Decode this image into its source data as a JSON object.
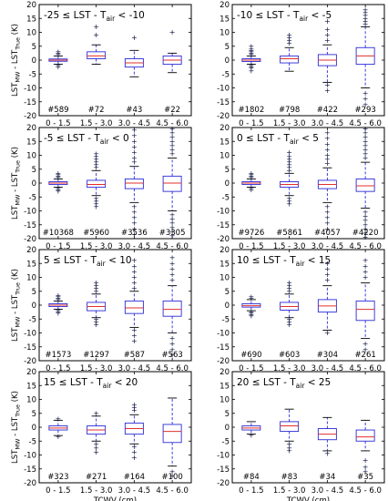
{
  "figure": {
    "ylabel_main": "LST",
    "ylabel_main_sub": "MW",
    "ylabel_dash": " - LST",
    "ylabel_sub2": "True",
    "ylabel_unit": " (K)",
    "xlabel": "TCWV (cm)"
  },
  "chart_data": [
    {
      "type": "box",
      "title": "-25 ≤ LST - T",
      "title_sub": "air",
      "title_end": " < -10",
      "categories": [
        "0 - 1.5",
        "1.5 - 3.0",
        "3.0 - 4.5",
        "4.5 - 6.0"
      ],
      "counts": [
        "#589",
        "#72",
        "#43",
        "#22"
      ],
      "ylim": [
        -20,
        20
      ],
      "yticks": [
        -20,
        -15,
        -10,
        -5,
        0,
        5,
        10,
        15,
        20
      ],
      "boxes": [
        {
          "wlo": -1.5,
          "q1": -0.4,
          "med": 0.0,
          "q3": 0.4,
          "whi": 1.5,
          "fliers": [
            2.0,
            2.5,
            3.0,
            -2.0,
            -2.5
          ]
        },
        {
          "wlo": -1.5,
          "q1": 0.5,
          "med": 1.5,
          "q3": 3.0,
          "whi": 5.5,
          "fliers": [
            9.0,
            12.0
          ]
        },
        {
          "wlo": -6.0,
          "q1": -2.5,
          "med": -1.0,
          "q3": 0.5,
          "whi": 3.5,
          "fliers": [
            8.0
          ]
        },
        {
          "wlo": -4.5,
          "q1": -1.5,
          "med": 0.0,
          "q3": 1.5,
          "whi": 2.5,
          "fliers": [
            10.0
          ]
        }
      ]
    },
    {
      "type": "box",
      "title": "-10 ≤ LST - T",
      "title_sub": "air",
      "title_end": " < -5",
      "categories": [
        "0 - 1.5",
        "1.5 - 3.0",
        "3.0 - 4.5",
        "4.5 - 6.0"
      ],
      "counts": [
        "#1802",
        "#798",
        "#422",
        "#293"
      ],
      "ylim": [
        -20,
        20
      ],
      "yticks": [
        -20,
        -15,
        -10,
        -5,
        0,
        5,
        10,
        15,
        20
      ],
      "boxes": [
        {
          "wlo": -1.5,
          "q1": -0.5,
          "med": 0.0,
          "q3": 0.5,
          "whi": 1.5,
          "fliers": [
            2.0,
            2.5,
            3.0,
            3.5,
            4.0,
            5.0,
            -2.0,
            -2.5,
            -3.0,
            -4.0
          ]
        },
        {
          "wlo": -4.0,
          "q1": -1.0,
          "med": 0.5,
          "q3": 1.5,
          "whi": 4.5,
          "fliers": [
            6.0,
            7.0,
            8.0,
            9.0
          ]
        },
        {
          "wlo": -8.0,
          "q1": -2.0,
          "med": 0.0,
          "q3": 2.0,
          "whi": 5.5,
          "fliers": [
            7.0,
            9.0,
            11.0,
            14.0,
            -9.0,
            -11.0
          ]
        },
        {
          "wlo": -10.0,
          "q1": -1.5,
          "med": 1.5,
          "q3": 4.5,
          "whi": 12.0,
          "fliers": [
            13.0,
            14.0,
            15.0,
            16.0,
            17.0,
            18.0,
            -12.0,
            -14.0,
            -16.0
          ]
        }
      ]
    },
    {
      "type": "box",
      "title": "-5 ≤ LST - T",
      "title_sub": "air",
      "title_end": " < 0",
      "categories": [
        "0 - 1.5",
        "1.5 - 3.0",
        "3.0 - 4.5",
        "4.5 - 6.0"
      ],
      "counts": [
        "#10368",
        "#5960",
        "#3536",
        "#3305"
      ],
      "ylim": [
        -20,
        20
      ],
      "yticks": [
        -20,
        -15,
        -10,
        -5,
        0,
        5,
        10,
        15,
        20
      ],
      "boxes": [
        {
          "wlo": -1.5,
          "q1": -0.5,
          "med": 0.0,
          "q3": 0.5,
          "whi": 1.5,
          "fliers": [
            2.0,
            2.5,
            3.0,
            3.5,
            -2.0,
            -2.5,
            -3.0
          ]
        },
        {
          "wlo": -4.5,
          "q1": -1.5,
          "med": -0.5,
          "q3": 1.0,
          "whi": 4.5,
          "fliers": [
            5.5,
            6.5,
            7.5,
            8.5,
            9.5,
            10.5,
            -5.5,
            -6.5,
            -7.5,
            -8.5
          ]
        },
        {
          "wlo": -7.0,
          "q1": -2.0,
          "med": 0.0,
          "q3": 1.5,
          "whi": 6.0,
          "fliers": [
            7.5,
            9.0,
            11.0,
            13.0,
            15.0,
            17.0,
            19.0,
            -8.5,
            -10.5,
            -12.5,
            -14.5,
            -16.5,
            -18.5
          ]
        },
        {
          "wlo": -10.0,
          "q1": -3.0,
          "med": 0.0,
          "q3": 2.5,
          "whi": 9.0,
          "fliers": [
            10.5,
            12.0,
            13.5,
            15.0,
            16.5,
            18.0,
            19.5,
            -11.5,
            -13.0,
            -14.5,
            -16.0,
            -17.5,
            -19.0
          ]
        }
      ]
    },
    {
      "type": "box",
      "title": "0 ≤ LST - T",
      "title_sub": "air",
      "title_end": " < 5",
      "categories": [
        "0 - 1.5",
        "1.5 - 3.0",
        "3.0 - 4.5",
        "4.5 - 6.0"
      ],
      "counts": [
        "#9726",
        "#5861",
        "#4057",
        "#4220"
      ],
      "ylim": [
        -20,
        20
      ],
      "yticks": [
        -20,
        -15,
        -10,
        -5,
        0,
        5,
        10,
        15,
        20
      ],
      "boxes": [
        {
          "wlo": -1.5,
          "q1": -0.5,
          "med": 0.0,
          "q3": 0.5,
          "whi": 1.5,
          "fliers": [
            2.0,
            2.5,
            3.0,
            3.5,
            -2.0,
            -2.5
          ]
        },
        {
          "wlo": -4.5,
          "q1": -1.5,
          "med": -0.5,
          "q3": 0.5,
          "whi": 3.5,
          "fliers": [
            4.5,
            5.5,
            6.5,
            7.5,
            8.5,
            9.5,
            11.0,
            -5.5,
            -6.5,
            -7.5
          ]
        },
        {
          "wlo": -7.0,
          "q1": -2.0,
          "med": -0.5,
          "q3": 1.0,
          "whi": 5.5,
          "fliers": [
            7.0,
            8.5,
            10.0,
            12.0,
            14.0,
            16.0,
            18.0,
            -8.5,
            -10.5,
            -12.5,
            -14.5,
            -16.5
          ]
        },
        {
          "wlo": -9.0,
          "q1": -3.0,
          "med": -1.0,
          "q3": 1.5,
          "whi": 7.5,
          "fliers": [
            9.0,
            10.5,
            12.0,
            13.5,
            15.0,
            16.5,
            18.0,
            19.5,
            -10.5,
            -12.0,
            -13.5,
            -15.0,
            -16.5,
            -18.0,
            -19.5
          ]
        }
      ]
    },
    {
      "type": "box",
      "title": "5 ≤ LST - T",
      "title_sub": "air",
      "title_end": " < 10",
      "categories": [
        "0 - 1.5",
        "1.5 - 3.0",
        "3.0 - 4.5",
        "4.5 - 6.0"
      ],
      "counts": [
        "#1573",
        "#1297",
        "#587",
        "#563"
      ],
      "ylim": [
        -20,
        20
      ],
      "yticks": [
        -20,
        -15,
        -10,
        -5,
        0,
        5,
        10,
        15,
        20
      ],
      "boxes": [
        {
          "wlo": -1.5,
          "q1": -0.5,
          "med": 0.0,
          "q3": 0.5,
          "whi": 1.5,
          "fliers": [
            2.0,
            2.5,
            3.0,
            3.5,
            -2.0,
            -2.5,
            -3.0
          ]
        },
        {
          "wlo": -4.5,
          "q1": -2.0,
          "med": -0.5,
          "q3": 1.0,
          "whi": 4.0,
          "fliers": [
            5.0,
            6.0,
            7.0,
            8.0,
            -5.0,
            -6.0,
            -7.0
          ]
        },
        {
          "wlo": -8.0,
          "q1": -3.0,
          "med": -1.0,
          "q3": 1.5,
          "whi": 5.0,
          "fliers": [
            6.0,
            8.0,
            10.0,
            12.0,
            14.0,
            16.0,
            -9.0,
            -11.0,
            -13.0
          ]
        },
        {
          "wlo": -10.0,
          "q1": -4.0,
          "med": -1.5,
          "q3": 1.5,
          "whi": 7.0,
          "fliers": [
            9.0,
            11.0,
            13.0,
            15.0,
            17.0,
            -12.0,
            -14.0,
            -16.0,
            -18.0
          ]
        }
      ]
    },
    {
      "type": "box",
      "title": "10 ≤ LST - T",
      "title_sub": "air",
      "title_end": " < 15",
      "categories": [
        "0 - 1.5",
        "1.5 - 3.0",
        "3.0 - 4.5",
        "4.5 - 6.0"
      ],
      "counts": [
        "#690",
        "#603",
        "#304",
        "#261"
      ],
      "ylim": [
        -20,
        20
      ],
      "yticks": [
        -20,
        -15,
        -10,
        -5,
        0,
        5,
        10,
        15,
        20
      ],
      "boxes": [
        {
          "wlo": -2.0,
          "q1": -0.7,
          "med": -0.2,
          "q3": 0.5,
          "whi": 2.0,
          "fliers": [
            2.5,
            3.0,
            -2.5,
            -3.0,
            -3.5,
            -4.0
          ]
        },
        {
          "wlo": -4.5,
          "q1": -1.8,
          "med": -0.5,
          "q3": 1.0,
          "whi": 4.0,
          "fliers": [
            5.0,
            6.0,
            7.0,
            8.0,
            -5.0,
            -6.0,
            -7.0
          ]
        },
        {
          "wlo": -9.0,
          "q1": -2.5,
          "med": -0.3,
          "q3": 2.0,
          "whi": 7.0,
          "fliers": [
            9.0,
            11.0,
            13.0,
            15.0,
            -10.0
          ]
        },
        {
          "wlo": -12.0,
          "q1": -5.5,
          "med": -1.5,
          "q3": 1.5,
          "whi": 8.0,
          "fliers": [
            10.0,
            12.0,
            14.0,
            16.0,
            -14.0,
            -16.0
          ]
        }
      ]
    },
    {
      "type": "box",
      "title": "15 ≤ LST - T",
      "title_sub": "air",
      "title_end": " < 20",
      "categories": [
        "0 - 1.5",
        "1.5 - 3.0",
        "3.0 - 4.5",
        "4.5 - 6.0"
      ],
      "counts": [
        "#323",
        "#271",
        "#164",
        "#100"
      ],
      "ylim": [
        -20,
        20
      ],
      "yticks": [
        -20,
        -15,
        -10,
        -5,
        0,
        5,
        10,
        15,
        20
      ],
      "boxes": [
        {
          "wlo": -3.0,
          "q1": -1.0,
          "med": -0.3,
          "q3": 0.5,
          "whi": 2.5,
          "fliers": [
            3.0,
            -3.5
          ]
        },
        {
          "wlo": -5.0,
          "q1": -2.5,
          "med": -1.0,
          "q3": 0.5,
          "whi": 4.0,
          "fliers": [
            -6.0,
            -7.5,
            -9.0,
            5.0
          ]
        },
        {
          "wlo": -6.0,
          "q1": -2.5,
          "med": -0.5,
          "q3": 1.5,
          "whi": 4.5,
          "fliers": [
            6.0,
            7.0,
            8.0,
            -7.0,
            -9.0,
            -11.0
          ]
        },
        {
          "wlo": -14.0,
          "q1": -5.5,
          "med": -1.5,
          "q3": 1.0,
          "whi": 10.5,
          "fliers": [
            -16.0,
            -17.5
          ]
        }
      ]
    },
    {
      "type": "box",
      "title": "20 ≤ LST - T",
      "title_sub": "air",
      "title_end": " < 25",
      "categories": [
        "0 - 1.5",
        "1.5 - 3.0",
        "3.0 - 4.5",
        "4.5 - 6.0"
      ],
      "counts": [
        "#84",
        "#83",
        "#34",
        "#35"
      ],
      "ylim": [
        -20,
        20
      ],
      "yticks": [
        -20,
        -15,
        -10,
        -5,
        0,
        5,
        10,
        15,
        20
      ],
      "boxes": [
        {
          "wlo": -2.5,
          "q1": -1.0,
          "med": -0.3,
          "q3": 0.5,
          "whi": 2.0,
          "fliers": [
            -3.0
          ]
        },
        {
          "wlo": -5.0,
          "q1": -1.5,
          "med": 0.5,
          "q3": 2.0,
          "whi": 6.5,
          "fliers": [
            -6.0,
            -7.5,
            -8.5
          ]
        },
        {
          "wlo": -8.5,
          "q1": -4.5,
          "med": -2.5,
          "q3": -0.5,
          "whi": 3.5,
          "fliers": [
            -9.5
          ]
        },
        {
          "wlo": -8.5,
          "q1": -5.0,
          "med": -3.5,
          "q3": -1.0,
          "whi": 2.5,
          "fliers": [
            -12.0,
            -14.5,
            -16.0
          ]
        }
      ]
    }
  ]
}
